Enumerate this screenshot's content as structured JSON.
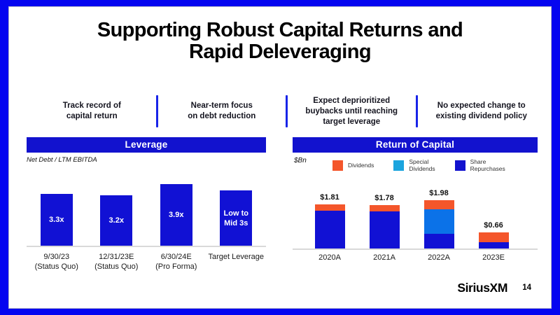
{
  "slide": {
    "title_line1": "Supporting Robust Capital Returns and",
    "title_line2": "Rapid Deleveraging",
    "logo_text": "SiriusXM",
    "page_number": "14"
  },
  "callouts": [
    {
      "text": "Track record of\ncapital return"
    },
    {
      "text": "Near-term focus\non debt reduction"
    },
    {
      "text": "Expect deprioritized\nbuybacks until reaching\ntarget leverage"
    },
    {
      "text": "No expected change to\nexisting dividend policy"
    }
  ],
  "sections": {
    "leverage": {
      "header": "Leverage",
      "subtitle": "Net Debt / LTM EBITDA"
    },
    "return_of_capital": {
      "header": "Return of Capital",
      "unit_label": "$Bn"
    }
  },
  "colors": {
    "frame_blue": "#0505F0",
    "header_blue": "#1212CE",
    "bar_dark_blue": "#1111D4",
    "bar_light_blue": "#0B72E8",
    "legend_light_blue": "#1BA4DE",
    "orange": "#F4562B",
    "axis_line_gray": "#D9D9D9"
  },
  "chart_data": [
    {
      "type": "bar",
      "title": "Leverage",
      "ylabel": "Net Debt / LTM EBITDA (x)",
      "categories": [
        "9/30/23\n(Status Quo)",
        "12/31/23E\n(Status Quo)",
        "6/30/24E\n(Pro Forma)",
        "Target Leverage"
      ],
      "values": [
        3.3,
        3.2,
        3.9,
        3.5
      ],
      "bar_labels": [
        "3.3x",
        "3.2x",
        "3.9x",
        "Low to\nMid 3s"
      ],
      "bar_color": "#1111D4",
      "ylim": [
        0,
        4.3
      ],
      "grid": false,
      "note": "Target Leverage bar labeled 'Low to Mid 3s'; 3.5 is a visual estimate"
    },
    {
      "type": "bar",
      "stacked": true,
      "title": "Return of Capital",
      "ylabel": "$Bn",
      "categories": [
        "2020A",
        "2021A",
        "2022A",
        "2023E"
      ],
      "series": [
        {
          "name": "Dividends",
          "color": "#F4562B",
          "values": [
            0.26,
            0.25,
            0.37,
            0.39
          ]
        },
        {
          "name": "Special Dividends",
          "color": "#0B72E8",
          "values": [
            0,
            0,
            1.0,
            0
          ]
        },
        {
          "name": "Share Repurchases",
          "color": "#1111D4",
          "values": [
            1.55,
            1.53,
            0.61,
            0.27
          ]
        }
      ],
      "totals": [
        1.81,
        1.78,
        1.98,
        0.66
      ],
      "total_labels": [
        "$1.81",
        "$1.78",
        "$1.98",
        "$0.66"
      ],
      "legend": [
        {
          "label": "Dividends",
          "color": "#F4562B"
        },
        {
          "label": "Special\nDividends",
          "color": "#1BA4DE"
        },
        {
          "label": "Share\nRepurchases",
          "color": "#1212CE"
        }
      ],
      "legend_position": "top",
      "ylim": [
        0,
        2.2
      ],
      "grid": false,
      "note": "segment values estimated from bar proportions; totals are labeled on chart"
    }
  ]
}
